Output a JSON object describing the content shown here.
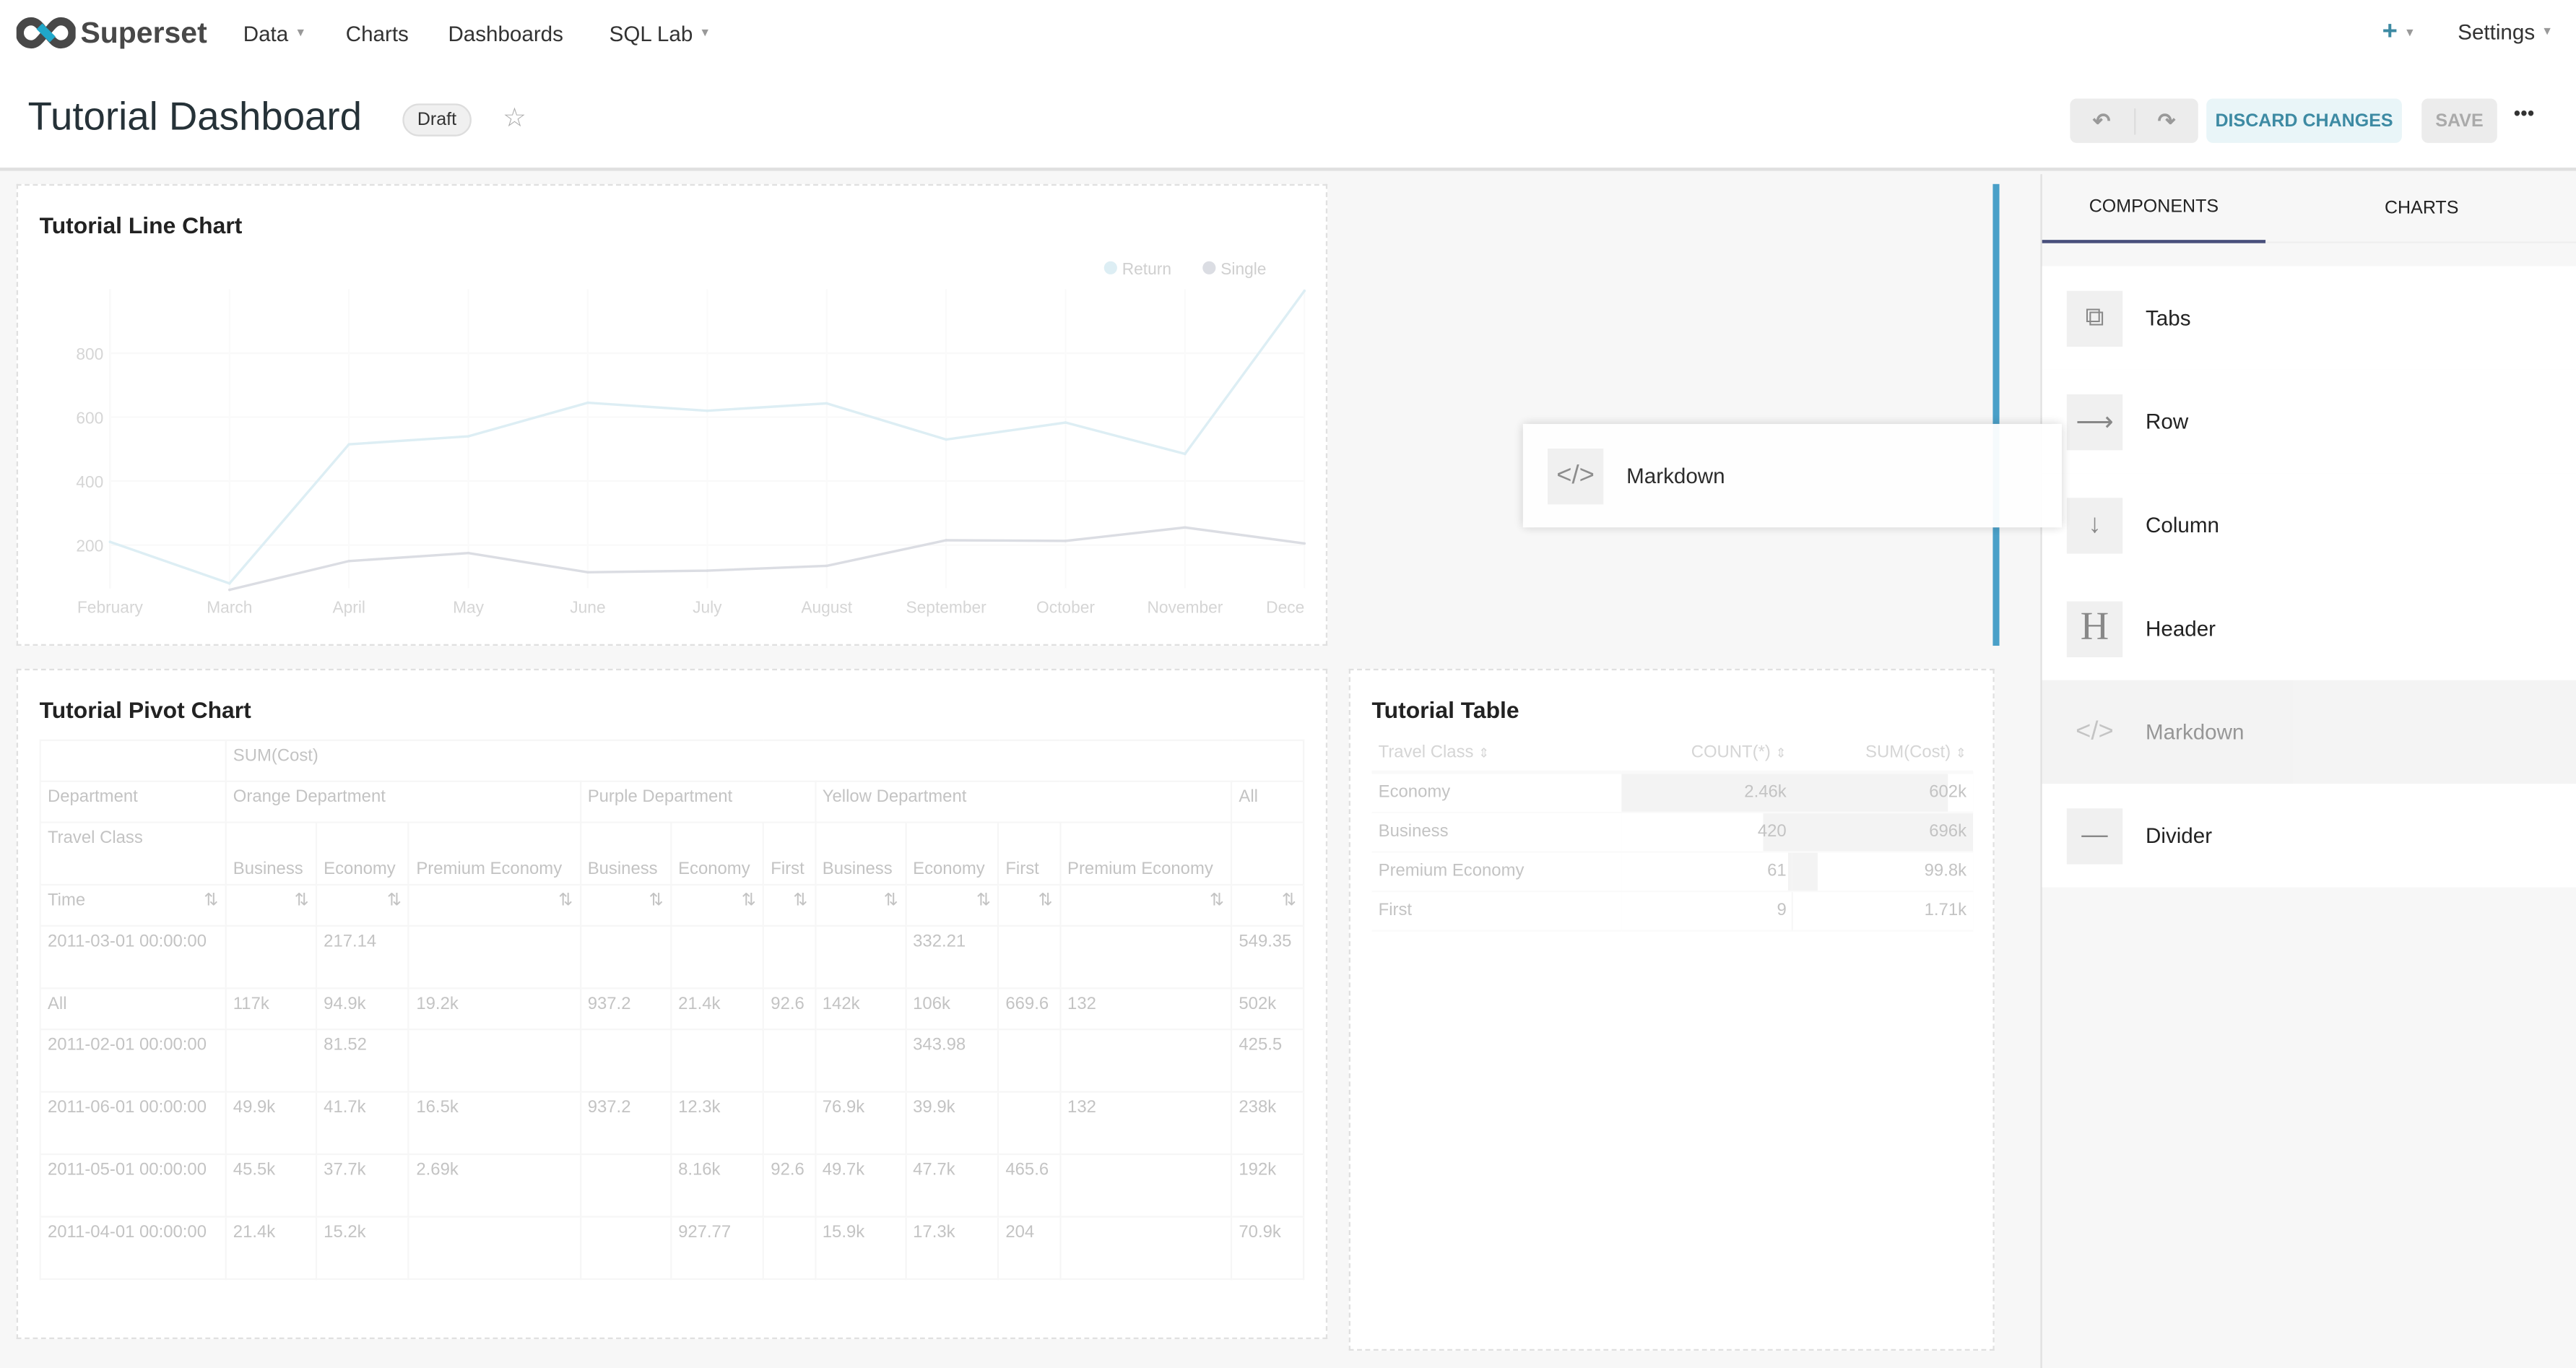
{
  "nav": {
    "brand": "Superset",
    "items": [
      {
        "label": "Data",
        "dropdown": true
      },
      {
        "label": "Charts"
      },
      {
        "label": "Dashboards"
      },
      {
        "label": "SQL Lab",
        "dropdown": true
      }
    ],
    "plus": "+",
    "settings": "Settings"
  },
  "header": {
    "title": "Tutorial Dashboard",
    "badge": "Draft",
    "discard": "DISCARD CHANGES",
    "save": "SAVE",
    "more": "•••"
  },
  "colors": {
    "accent": "#20a7c9",
    "primary_text": "#3d8aa3",
    "tab_underline": "#484f7b",
    "return": "#d6ebf2",
    "single": "#c8cad2",
    "drop_indicator": "#4aa0c8"
  },
  "line_chart": {
    "title": "Tutorial Line Chart"
  },
  "chart_data": {
    "type": "line",
    "title": "Tutorial Line Chart",
    "categories": [
      "February",
      "March",
      "April",
      "May",
      "June",
      "July",
      "August",
      "September",
      "October",
      "November",
      "Dece"
    ],
    "yticks": [
      200,
      400,
      600,
      800
    ],
    "ylim": [
      65,
      1000
    ],
    "legend": "top-right",
    "grid": true,
    "series": [
      {
        "name": "Return",
        "color": "#d6ebf2",
        "values": [
          210,
          80,
          515,
          540,
          645,
          620,
          643,
          530,
          583,
          485,
          995
        ]
      },
      {
        "name": "Single",
        "color": "#c8cad2",
        "values": [
          null,
          60,
          150,
          175,
          115,
          120,
          135,
          215,
          213,
          255,
          205
        ]
      }
    ]
  },
  "pivot": {
    "title": "Tutorial Pivot Chart",
    "metric": "SUM(Cost)",
    "dept_label": "Department",
    "class_label": "Travel Class",
    "time_label": "Time",
    "departments": [
      {
        "name": "Orange Department",
        "span": 3
      },
      {
        "name": "Purple Department",
        "span": 3
      },
      {
        "name": "Yellow Department",
        "span": 4
      },
      {
        "name": "All",
        "span": 1
      }
    ],
    "classes": [
      "Business",
      "Economy",
      "Premium Economy",
      "Business",
      "Economy",
      "First",
      "Business",
      "Economy",
      "First",
      "Premium Economy",
      ""
    ],
    "rows": [
      [
        "2011-03-01 00:00:00",
        "",
        "217.14",
        "",
        "",
        "",
        "",
        "",
        "332.21",
        "",
        "",
        "549.35"
      ],
      [
        "All",
        "117k",
        "94.9k",
        "19.2k",
        "937.2",
        "21.4k",
        "92.6",
        "142k",
        "106k",
        "669.6",
        "132",
        "502k"
      ],
      [
        "2011-02-01 00:00:00",
        "",
        "81.52",
        "",
        "",
        "",
        "",
        "",
        "343.98",
        "",
        "",
        "425.5"
      ],
      [
        "2011-06-01 00:00:00",
        "49.9k",
        "41.7k",
        "16.5k",
        "937.2",
        "12.3k",
        "",
        "76.9k",
        "39.9k",
        "",
        "132",
        "238k"
      ],
      [
        "2011-05-01 00:00:00",
        "45.5k",
        "37.7k",
        "2.69k",
        "",
        "8.16k",
        "92.6",
        "49.7k",
        "47.7k",
        "465.6",
        "",
        "192k"
      ],
      [
        "2011-04-01 00:00:00",
        "21.4k",
        "15.2k",
        "",
        "",
        "927.77",
        "",
        "15.9k",
        "17.3k",
        "204",
        "",
        "70.9k"
      ]
    ]
  },
  "table": {
    "title": "Tutorial Table",
    "columns": [
      "Travel Class",
      "COUNT(*)",
      "SUM(Cost)"
    ],
    "rows": [
      {
        "c": "Economy",
        "n": "2.46k",
        "s": "602k",
        "nf": 1,
        "sf": 0.86
      },
      {
        "c": "Business",
        "n": "420",
        "s": "696k",
        "nf": 0.17,
        "sf": 1
      },
      {
        "c": "Premium Economy",
        "n": "61",
        "s": "99.8k",
        "nf": 0.025,
        "sf": 0.14
      },
      {
        "c": "First",
        "n": "9",
        "s": "1.71k",
        "nf": 0.004,
        "sf": 0.002
      }
    ]
  },
  "sidebar": {
    "tabs": [
      "COMPONENTS",
      "CHARTS"
    ],
    "items": [
      {
        "label": "Tabs",
        "icon": "tabs-icon"
      },
      {
        "label": "Row",
        "icon": "arrow-right-icon"
      },
      {
        "label": "Column",
        "icon": "arrow-down-icon"
      },
      {
        "label": "Header",
        "icon": "header-icon"
      },
      {
        "label": "Markdown",
        "icon": "code-icon"
      },
      {
        "label": "Divider",
        "icon": "divider-icon"
      }
    ]
  },
  "drag_ghost": {
    "label": "Markdown"
  }
}
